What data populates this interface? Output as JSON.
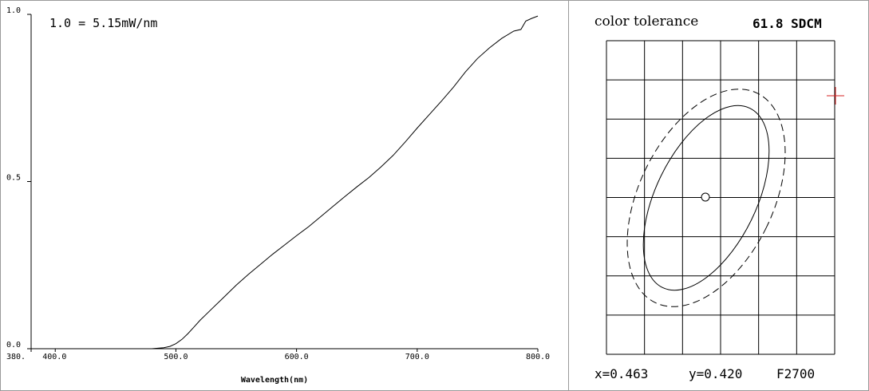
{
  "chart_data": [
    {
      "type": "line",
      "title": "",
      "annotation": "1.0 = 5.15mW/nm",
      "xlabel": "Wavelength(nm)",
      "ylabel": "",
      "xlim": [
        380,
        800
      ],
      "ylim": [
        0,
        1
      ],
      "x_tick_labels": [
        "380.",
        "400.0",
        "500.0",
        "600.0",
        "700.0",
        "800.0"
      ],
      "x_tick_values": [
        380,
        400,
        500,
        600,
        700,
        800
      ],
      "y_tick_labels": [
        "0.0",
        "0.5",
        "1.0"
      ],
      "y_tick_values": [
        0,
        0.5,
        1
      ],
      "grid": false,
      "series": [
        {
          "x": [
            380,
            400,
            480,
            490,
            495,
            500,
            505,
            510,
            515,
            520,
            530,
            540,
            550,
            560,
            570,
            580,
            590,
            600,
            610,
            620,
            630,
            640,
            650,
            660,
            670,
            680,
            690,
            700,
            710,
            720,
            730,
            740,
            750,
            760,
            770,
            780,
            786,
            790,
            795,
            800
          ],
          "y": [
            0.0,
            0.0,
            0.0,
            0.003,
            0.007,
            0.015,
            0.028,
            0.045,
            0.065,
            0.085,
            0.12,
            0.155,
            0.19,
            0.222,
            0.252,
            0.282,
            0.31,
            0.338,
            0.365,
            0.395,
            0.425,
            0.455,
            0.484,
            0.512,
            0.544,
            0.578,
            0.618,
            0.66,
            0.7,
            0.74,
            0.782,
            0.828,
            0.868,
            0.9,
            0.928,
            0.95,
            0.955,
            0.98,
            0.988,
            0.995
          ]
        }
      ]
    },
    {
      "type": "scatter",
      "title": "color tolerance",
      "value_label": "61.8 SDCM",
      "coords": {
        "x": "x=0.463",
        "y": "y=0.420",
        "ref": "F2700"
      },
      "grid": true,
      "grid_columns": 6,
      "grid_rows": 7,
      "markers": [
        {
          "name": "center",
          "shape": "circle"
        },
        {
          "name": "measured-point",
          "shape": "plus",
          "color": "#d62020"
        }
      ],
      "ellipses": [
        {
          "name": "inner",
          "style": "solid"
        },
        {
          "name": "outer",
          "style": "dashed"
        }
      ]
    }
  ],
  "colors": {
    "axis": "#000000",
    "grid": "#000000",
    "marker": "#d62020",
    "frame": "#9a9a9a"
  }
}
